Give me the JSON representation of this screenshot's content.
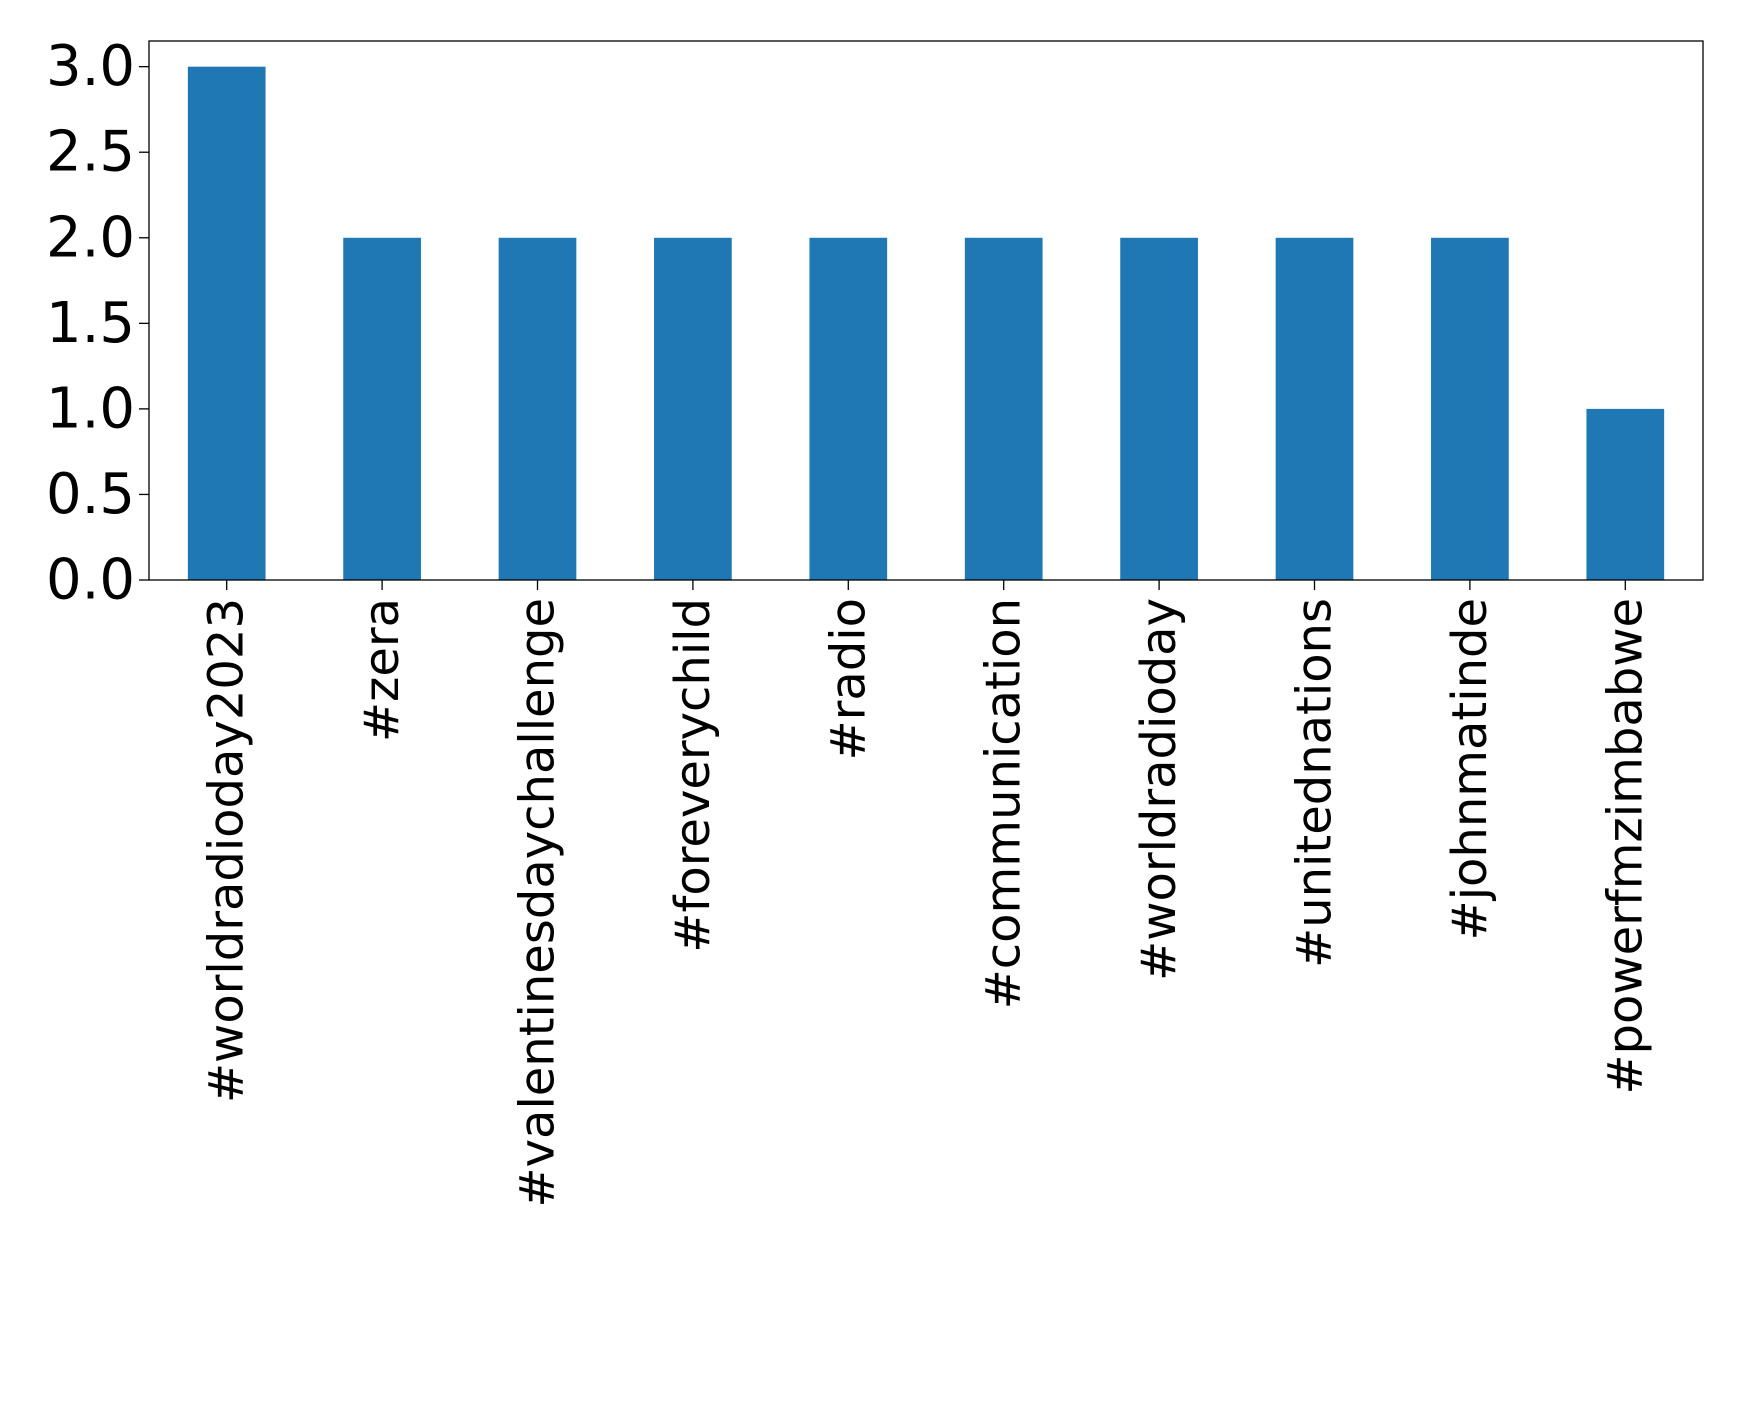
{
  "chart_data": {
    "type": "bar",
    "title": "",
    "xlabel": "",
    "ylabel": "",
    "categories": [
      "#worldradioday2023",
      "#zera",
      "#valentinesdaychallenge",
      "#foreverychild",
      "#radio",
      "#communication",
      "#worldradioday",
      "#unitednations",
      "#johnmatinde",
      "#powerfmzimbabwe"
    ],
    "values": [
      3,
      2,
      2,
      2,
      2,
      2,
      2,
      2,
      2,
      1
    ],
    "ylim": [
      0,
      3.15
    ],
    "yticks": [
      0.0,
      0.5,
      1.0,
      1.5,
      2.0,
      2.5,
      3.0
    ],
    "ytick_labels": [
      "0.0",
      "0.5",
      "1.0",
      "1.5",
      "2.0",
      "2.5",
      "3.0"
    ],
    "bar_color": "#1f77b4",
    "grid": false,
    "legend": "none"
  }
}
